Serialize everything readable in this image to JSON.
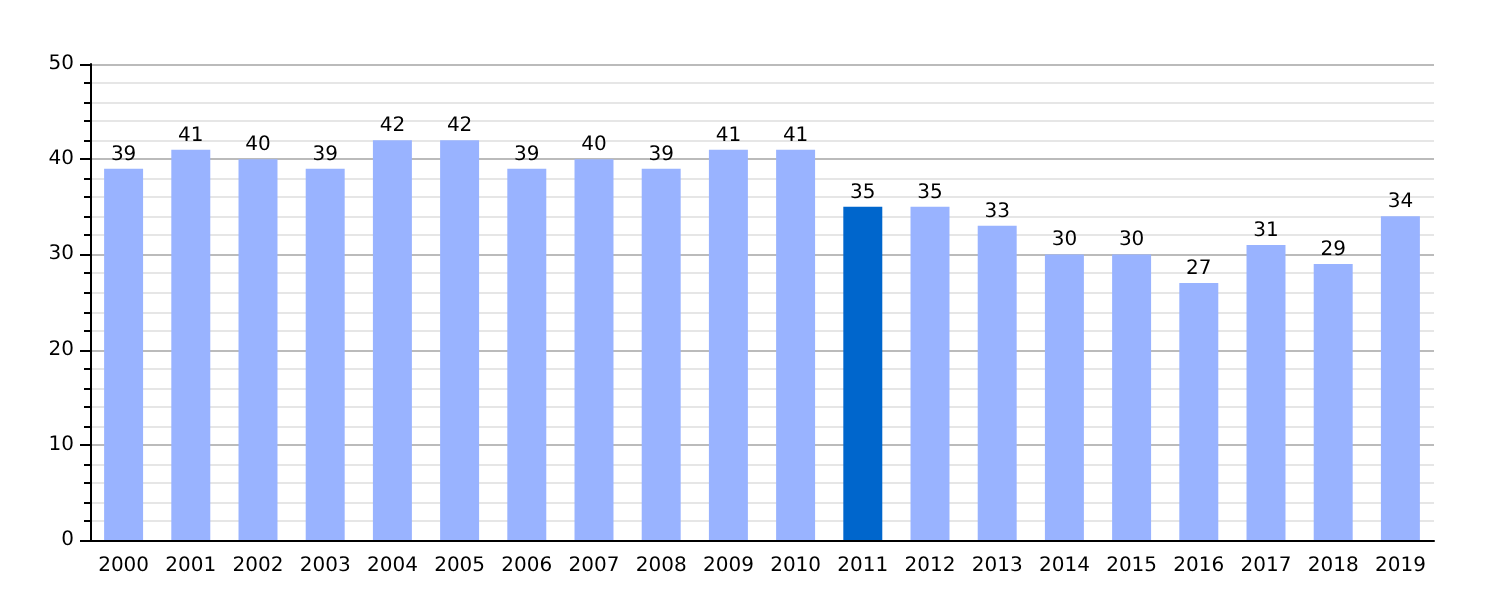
{
  "chart_data": {
    "type": "bar",
    "categories": [
      "2000",
      "2001",
      "2002",
      "2003",
      "2004",
      "2005",
      "2006",
      "2007",
      "2008",
      "2009",
      "2010",
      "2011",
      "2012",
      "2013",
      "2014",
      "2015",
      "2016",
      "2017",
      "2018",
      "2019"
    ],
    "values": [
      39,
      41,
      40,
      39,
      42,
      42,
      39,
      40,
      39,
      41,
      41,
      35,
      35,
      33,
      30,
      30,
      27,
      31,
      29,
      34
    ],
    "colors": [
      "#99b3ff",
      "#99b3ff",
      "#99b3ff",
      "#99b3ff",
      "#99b3ff",
      "#99b3ff",
      "#99b3ff",
      "#99b3ff",
      "#99b3ff",
      "#99b3ff",
      "#99b3ff",
      "#0066cc",
      "#99b3ff",
      "#99b3ff",
      "#99b3ff",
      "#99b3ff",
      "#99b3ff",
      "#99b3ff",
      "#99b3ff",
      "#99b3ff"
    ],
    "ylim": [
      0,
      50
    ],
    "yticks": [
      0,
      10,
      20,
      30,
      40,
      50
    ],
    "grid": "y",
    "data_labels": true
  }
}
